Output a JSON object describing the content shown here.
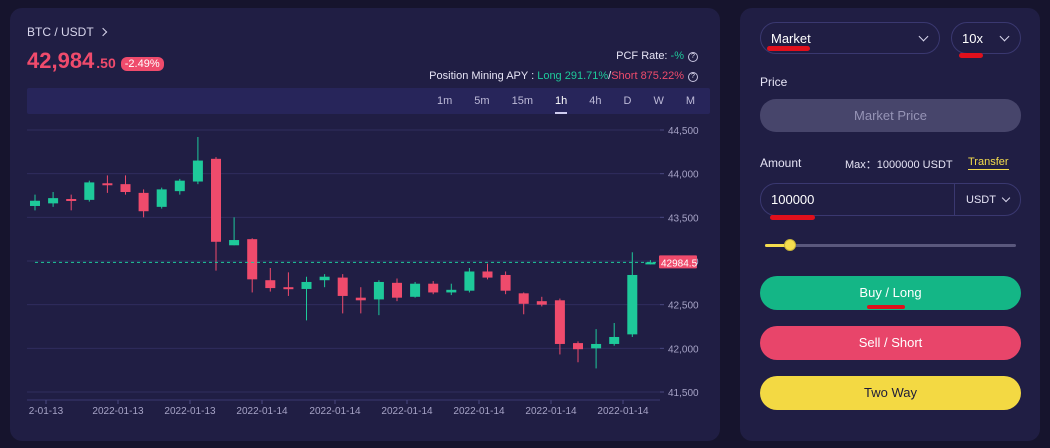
{
  "ticker": {
    "pair_label": "BTC / USDT",
    "price_main": "42,984",
    "price_decimal": ".50",
    "change_badge": "-2.49%",
    "pcf_label": "PCF Rate: ",
    "pcf_value": "-%",
    "apy_label": "Position Mining APY : ",
    "apy_long": "Long 291.71%",
    "apy_sep": "/",
    "apy_short": "Short 875.22%"
  },
  "timeframes": [
    "1m",
    "5m",
    "15m",
    "1h",
    "4h",
    "D",
    "W",
    "M"
  ],
  "active_timeframe": "1h",
  "chart_data": {
    "type": "candlestick",
    "y_ticks": [
      "44,500",
      "44,000",
      "43,500",
      "43,000",
      "42,500",
      "42,000",
      "41,500"
    ],
    "ylim": [
      41500,
      44500
    ],
    "x_ticks": [
      "2-01-13",
      "2022-01-13",
      "2022-01-13",
      "2022-01-14",
      "2022-01-14",
      "2022-01-14",
      "2022-01-14",
      "2022-01-14",
      "2022-01-14"
    ],
    "current_price_label": "42984.5",
    "current_price": 42984.5,
    "candles": [
      {
        "o": 43630,
        "c": 43690,
        "h": 43760,
        "l": 43580
      },
      {
        "o": 43660,
        "c": 43720,
        "h": 43790,
        "l": 43620
      },
      {
        "o": 43710,
        "c": 43690,
        "h": 43760,
        "l": 43580
      },
      {
        "o": 43700,
        "c": 43900,
        "h": 43920,
        "l": 43680
      },
      {
        "o": 43890,
        "c": 43870,
        "h": 43980,
        "l": 43780
      },
      {
        "o": 43880,
        "c": 43790,
        "h": 43980,
        "l": 43760
      },
      {
        "o": 43780,
        "c": 43570,
        "h": 43820,
        "l": 43500
      },
      {
        "o": 43620,
        "c": 43820,
        "h": 43840,
        "l": 43600
      },
      {
        "o": 43800,
        "c": 43920,
        "h": 43940,
        "l": 43760
      },
      {
        "o": 43910,
        "c": 44150,
        "h": 44420,
        "l": 43880
      },
      {
        "o": 44170,
        "c": 43220,
        "h": 44190,
        "l": 42890
      },
      {
        "o": 43180,
        "c": 43240,
        "h": 43500,
        "l": 43180
      },
      {
        "o": 43250,
        "c": 42790,
        "h": 43260,
        "l": 42640
      },
      {
        "o": 42780,
        "c": 42690,
        "h": 42920,
        "l": 42650
      },
      {
        "o": 42700,
        "c": 42690,
        "h": 42870,
        "l": 42600
      },
      {
        "o": 42680,
        "c": 42760,
        "h": 42820,
        "l": 42320
      },
      {
        "o": 42780,
        "c": 42820,
        "h": 42850,
        "l": 42700
      },
      {
        "o": 42810,
        "c": 42600,
        "h": 42850,
        "l": 42400
      },
      {
        "o": 42580,
        "c": 42550,
        "h": 42700,
        "l": 42400
      },
      {
        "o": 42560,
        "c": 42760,
        "h": 42780,
        "l": 42380
      },
      {
        "o": 42750,
        "c": 42580,
        "h": 42800,
        "l": 42540
      },
      {
        "o": 42590,
        "c": 42740,
        "h": 42760,
        "l": 42580
      },
      {
        "o": 42740,
        "c": 42640,
        "h": 42770,
        "l": 42620
      },
      {
        "o": 42640,
        "c": 42670,
        "h": 42740,
        "l": 42610
      },
      {
        "o": 42660,
        "c": 42880,
        "h": 42920,
        "l": 42640
      },
      {
        "o": 42880,
        "c": 42810,
        "h": 42970,
        "l": 42790
      },
      {
        "o": 42840,
        "c": 42660,
        "h": 42880,
        "l": 42620
      },
      {
        "o": 42630,
        "c": 42510,
        "h": 42640,
        "l": 42390
      },
      {
        "o": 42540,
        "c": 42500,
        "h": 42590,
        "l": 42480
      },
      {
        "o": 42550,
        "c": 42050,
        "h": 42570,
        "l": 41930
      },
      {
        "o": 42060,
        "c": 41990,
        "h": 42080,
        "l": 41840
      },
      {
        "o": 42000,
        "c": 42050,
        "h": 42220,
        "l": 41770
      },
      {
        "o": 42050,
        "c": 42130,
        "h": 42290,
        "l": 42030
      },
      {
        "o": 42160,
        "c": 42840,
        "h": 43100,
        "l": 42130
      },
      {
        "o": 42980,
        "c": 42984,
        "h": 43010,
        "l": 42960
      }
    ]
  },
  "order_panel": {
    "order_type": "Market",
    "leverage": "10x",
    "price_label": "Price",
    "price_placeholder": "Market Price",
    "amount_label": "Amount",
    "max_text": "Max：1000000 USDT",
    "transfer_label": "Transfer",
    "amount_value": "100000",
    "amount_unit": "USDT",
    "slider_fraction": 0.1,
    "buy_label": "Buy / Long",
    "sell_label": "Sell / Short",
    "two_way_label": "Two Way"
  },
  "colors": {
    "up": "#1ec99a",
    "down": "#ef4b6c",
    "accent": "#f5dd4e",
    "panel": "#201e44"
  }
}
